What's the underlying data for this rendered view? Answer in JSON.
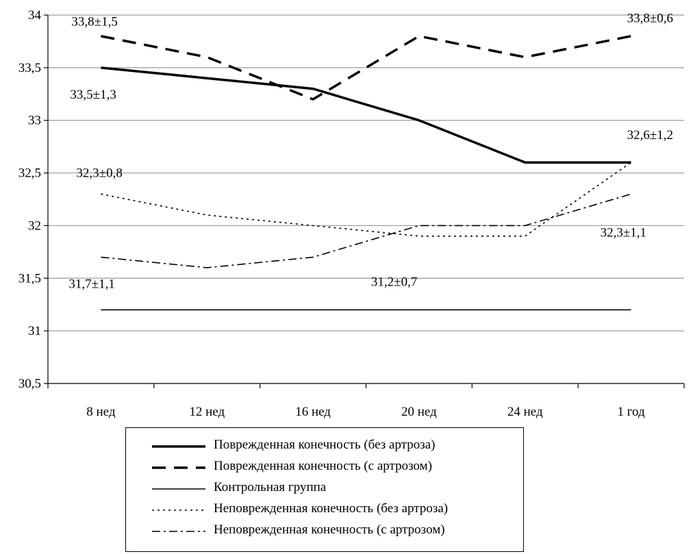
{
  "chart_data": {
    "type": "line",
    "categories": [
      "8 нед",
      "12 нед",
      "16 нед",
      "20 нед",
      "24 нед",
      "1 год"
    ],
    "ylim": [
      30.5,
      34
    ],
    "yticks": [
      "30,5",
      "31",
      "31,5",
      "32",
      "32,5",
      "33",
      "33,5",
      "34"
    ],
    "grid": true,
    "legend_position": "bottom",
    "series": [
      {
        "name": "Поврежденная конечность (без артроза)",
        "style": "solid-thick",
        "values": [
          33.5,
          33.4,
          33.3,
          33.0,
          32.6,
          32.6
        ]
      },
      {
        "name": "Поврежденная конечность (с артрозом)",
        "style": "dashed",
        "values": [
          33.8,
          33.6,
          33.2,
          33.8,
          33.6,
          33.8
        ]
      },
      {
        "name": "Контрольная группа",
        "style": "solid-thin",
        "values": [
          31.2,
          31.2,
          31.2,
          31.2,
          31.2,
          31.2
        ]
      },
      {
        "name": "Неповрежденная конечность (без артроза)",
        "style": "dotted",
        "values": [
          32.3,
          32.1,
          32.0,
          31.9,
          31.9,
          32.6
        ]
      },
      {
        "name": "Неповрежденная конечность (с артрозом)",
        "style": "dashdot",
        "values": [
          31.7,
          31.6,
          31.7,
          32.0,
          32.0,
          32.3
        ]
      }
    ],
    "annotations": [
      {
        "text": "33,8±1,5",
        "x": "8 нед",
        "y": 33.8
      },
      {
        "text": "33,5±1,3",
        "x": "8 нед",
        "y": 33.5
      },
      {
        "text": "32,3±0,8",
        "x": "8 нед",
        "y": 32.3
      },
      {
        "text": "31,7±1,1",
        "x": "8 нед",
        "y": 31.7
      },
      {
        "text": "31,2±0,7",
        "x": "20 нед",
        "y": 31.2
      },
      {
        "text": "33,8±0,6",
        "x": "1 год",
        "y": 33.8
      },
      {
        "text": "32,6±1,2",
        "x": "1 год",
        "y": 32.6
      },
      {
        "text": "32,3±1,1",
        "x": "1 год",
        "y": 32.3
      }
    ]
  }
}
